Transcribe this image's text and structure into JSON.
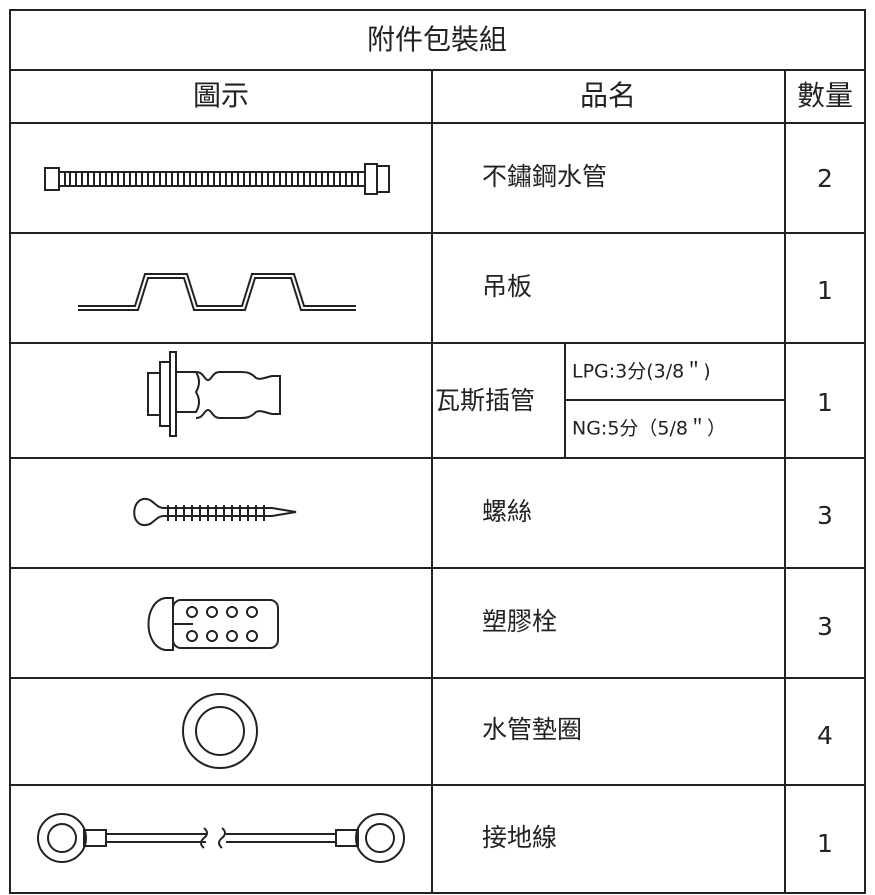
{
  "table": {
    "title": "附件包裝組",
    "header": [
      "圖示",
      "品名",
      "數量"
    ],
    "rows": [
      {
        "name": "不鏽鋼水管",
        "qty": 2
      },
      {
        "name": "吊板",
        "qty": 1
      },
      {
        "name": "瓦斯插管",
        "variants": [
          "LPG:3分(3/8＂)",
          "NG:5分（5/8＂）"
        ],
        "qty": 1
      },
      {
        "name": "螺絲",
        "qty": 3
      },
      {
        "name": "塑膠栓",
        "qty": 3
      },
      {
        "name": "水管墊圈",
        "qty": 4
      },
      {
        "name": "接地線",
        "qty": 1
      }
    ]
  }
}
